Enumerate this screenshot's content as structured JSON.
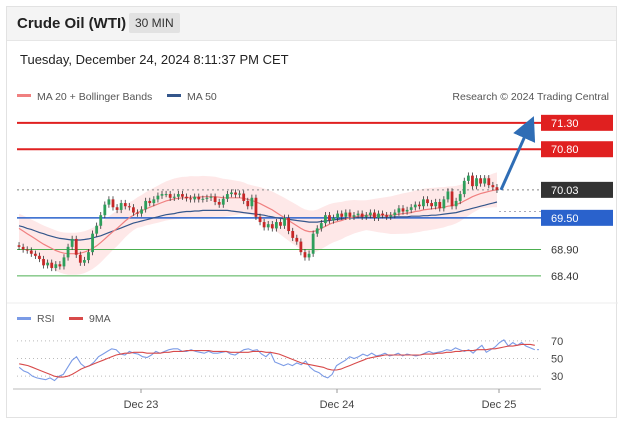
{
  "header": {
    "title": "Crude Oil (WTI)",
    "timeframe": "30 MIN"
  },
  "datetime": "Tuesday, December 24, 2024 8:11:37 PM CET",
  "legend": {
    "ma20_bb": "MA 20 + Bollinger Bands",
    "ma50": "MA 50",
    "copyright": "Research © 2024 Trading Central"
  },
  "rsi_legend": {
    "rsi": "RSI",
    "ma9": "9MA"
  },
  "colors": {
    "resistance": "#e02020",
    "support": "#4caf50",
    "pivot": "#2a62cc",
    "current": "#333333",
    "ma20": "#f08080",
    "ma50": "#34568b",
    "band": "#fde0e0",
    "up": "#2e9e5b",
    "down": "#c62828",
    "rsi": "#7b9be6",
    "ma9": "#d84a4a",
    "arrow": "#2f6db5"
  },
  "chart_data": [
    {
      "type": "candlestick",
      "title": "Crude Oil (WTI)",
      "x_ticks": [
        "Dec 23",
        "Dec 24",
        "Dec 25"
      ],
      "ylim": [
        68.0,
        71.6
      ],
      "levels": [
        {
          "label": "71.30",
          "value": 71.3,
          "kind": "resistance"
        },
        {
          "label": "70.80",
          "value": 70.8,
          "kind": "resistance"
        },
        {
          "label": "70.03",
          "value": 70.03,
          "kind": "current"
        },
        {
          "label": "69.50",
          "value": 69.5,
          "kind": "pivot"
        },
        {
          "label": "68.90",
          "value": 68.9,
          "kind": "support"
        },
        {
          "label": "68.40",
          "value": 68.4,
          "kind": "support"
        }
      ],
      "close": [
        68.95,
        68.9,
        68.88,
        68.82,
        68.78,
        68.72,
        68.6,
        68.65,
        68.55,
        68.62,
        68.58,
        68.75,
        68.95,
        69.1,
        68.8,
        68.65,
        68.7,
        68.85,
        69.2,
        69.35,
        69.55,
        69.75,
        69.85,
        69.7,
        69.65,
        69.78,
        69.72,
        69.7,
        69.6,
        69.58,
        69.66,
        69.82,
        69.78,
        69.85,
        69.92,
        69.95,
        69.95,
        69.88,
        69.9,
        69.95,
        69.9,
        69.87,
        69.85,
        69.9,
        69.85,
        69.86,
        69.88,
        69.9,
        69.8,
        69.75,
        69.86,
        69.95,
        69.98,
        69.94,
        69.96,
        69.82,
        69.72,
        69.88,
        69.52,
        69.42,
        69.32,
        69.38,
        69.3,
        69.42,
        69.35,
        69.5,
        69.25,
        69.12,
        69.05,
        68.85,
        68.75,
        68.82,
        69.2,
        69.3,
        69.4,
        69.55,
        69.45,
        69.5,
        69.58,
        69.52,
        69.6,
        69.52,
        69.55,
        69.58,
        69.52,
        69.55,
        69.6,
        69.5,
        69.58,
        69.55,
        69.52,
        69.55,
        69.6,
        69.68,
        69.62,
        69.65,
        69.7,
        69.75,
        69.72,
        69.85,
        69.78,
        69.72,
        69.8,
        69.68,
        69.85,
        70.0,
        69.72,
        69.82,
        69.95,
        70.2,
        70.3,
        70.1,
        70.25,
        70.15,
        70.25,
        70.12,
        70.08,
        70.03
      ],
      "open": [
        68.98,
        68.95,
        68.9,
        68.88,
        68.82,
        68.78,
        68.72,
        68.6,
        68.65,
        68.55,
        68.62,
        68.58,
        68.75,
        68.95,
        69.1,
        68.8,
        68.65,
        68.7,
        68.85,
        69.2,
        69.35,
        69.55,
        69.75,
        69.85,
        69.7,
        69.65,
        69.78,
        69.72,
        69.7,
        69.6,
        69.58,
        69.66,
        69.82,
        69.78,
        69.85,
        69.92,
        69.95,
        69.95,
        69.88,
        69.9,
        69.95,
        69.9,
        69.87,
        69.85,
        69.9,
        69.85,
        69.86,
        69.88,
        69.9,
        69.8,
        69.75,
        69.86,
        69.95,
        69.98,
        69.94,
        69.96,
        69.82,
        69.72,
        69.88,
        69.52,
        69.42,
        69.32,
        69.38,
        69.3,
        69.42,
        69.35,
        69.5,
        69.25,
        69.12,
        69.05,
        68.85,
        68.75,
        68.82,
        69.2,
        69.3,
        69.4,
        69.55,
        69.45,
        69.5,
        69.58,
        69.52,
        69.6,
        69.52,
        69.55,
        69.58,
        69.52,
        69.55,
        69.6,
        69.5,
        69.58,
        69.55,
        69.52,
        69.55,
        69.6,
        69.68,
        69.62,
        69.65,
        69.7,
        69.75,
        69.72,
        69.85,
        69.78,
        69.72,
        69.8,
        69.68,
        69.85,
        70.0,
        69.72,
        69.82,
        69.95,
        70.2,
        70.3,
        70.1,
        70.25,
        70.15,
        70.25,
        70.12,
        70.08
      ],
      "ma20": [
        69.3,
        69.25,
        69.2,
        69.15,
        69.1,
        69.05,
        69.0,
        68.96,
        68.92,
        68.88,
        68.85,
        68.83,
        68.82,
        68.82,
        68.82,
        68.83,
        68.85,
        68.88,
        68.92,
        68.97,
        69.03,
        69.1,
        69.17,
        69.24,
        69.3,
        69.37,
        69.44,
        69.5,
        69.55,
        69.6,
        69.63,
        69.67,
        69.7,
        69.73,
        69.76,
        69.79,
        69.82,
        69.84,
        69.86,
        69.87,
        69.88,
        69.88,
        69.89,
        69.89,
        69.89,
        69.9,
        69.9,
        69.9,
        69.9,
        69.89,
        69.88,
        69.88,
        69.88,
        69.88,
        69.88,
        69.87,
        69.85,
        69.83,
        69.8,
        69.77,
        69.73,
        69.69,
        69.65,
        69.6,
        69.55,
        69.5,
        69.45,
        69.4,
        69.35,
        69.3,
        69.26,
        69.24,
        69.24,
        69.26,
        69.3,
        69.34,
        69.38,
        69.41,
        69.43,
        69.45,
        69.48,
        69.5,
        69.52,
        69.53,
        69.54,
        69.55,
        69.55,
        69.55,
        69.55,
        69.55,
        69.55,
        69.55,
        69.56,
        69.57,
        69.58,
        69.59,
        69.6,
        69.62,
        69.63,
        69.65,
        69.66,
        69.67,
        69.68,
        69.69,
        69.7,
        69.72,
        69.73,
        69.75,
        69.78,
        69.82,
        69.86,
        69.9,
        69.93,
        69.96,
        69.98,
        70.0,
        70.02,
        70.03
      ],
      "ma50": [
        69.35,
        69.33,
        69.3,
        69.28,
        69.25,
        69.22,
        69.2,
        69.17,
        69.15,
        69.13,
        69.11,
        69.1,
        69.09,
        69.08,
        69.08,
        69.08,
        69.09,
        69.1,
        69.12,
        69.14,
        69.16,
        69.19,
        69.22,
        69.25,
        69.28,
        69.31,
        69.34,
        69.37,
        69.4,
        69.42,
        69.44,
        69.46,
        69.48,
        69.5,
        69.52,
        69.54,
        69.56,
        69.57,
        69.58,
        69.6,
        69.61,
        69.62,
        69.62,
        69.63,
        69.63,
        69.64,
        69.64,
        69.64,
        69.64,
        69.64,
        69.64,
        69.64,
        69.63,
        69.62,
        69.61,
        69.6,
        69.59,
        69.58,
        69.57,
        69.56,
        69.55,
        69.53,
        69.52,
        69.5,
        69.49,
        69.48,
        69.47,
        69.46,
        69.45,
        69.44,
        69.43,
        69.42,
        69.42,
        69.42,
        69.43,
        69.44,
        69.45,
        69.46,
        69.47,
        69.48,
        69.49,
        69.5,
        69.5,
        69.51,
        69.51,
        69.51,
        69.51,
        69.51,
        69.51,
        69.51,
        69.51,
        69.51,
        69.52,
        69.52,
        69.52,
        69.52,
        69.53,
        69.53,
        69.53,
        69.54,
        69.54,
        69.55,
        69.55,
        69.56,
        69.57,
        69.58,
        69.59,
        69.6,
        69.62,
        69.64,
        69.66,
        69.68,
        69.7,
        69.72,
        69.74,
        69.76,
        69.78,
        69.8
      ]
    },
    {
      "type": "line",
      "title": "RSI",
      "y_ticks": [
        "70",
        "50",
        "30"
      ],
      "ylim": [
        20,
        80
      ],
      "series": [
        {
          "name": "RSI",
          "values": [
            40,
            36,
            34,
            30,
            28,
            27,
            26,
            28,
            25,
            30,
            32,
            40,
            48,
            52,
            44,
            40,
            42,
            46,
            52,
            55,
            58,
            61,
            60,
            55,
            54,
            58,
            56,
            55,
            52,
            51,
            54,
            58,
            56,
            58,
            60,
            61,
            61,
            58,
            58,
            60,
            58,
            57,
            56,
            58,
            56,
            56,
            57,
            58,
            55,
            54,
            57,
            60,
            61,
            59,
            60,
            55,
            52,
            57,
            46,
            44,
            42,
            44,
            42,
            45,
            43,
            47,
            40,
            36,
            34,
            30,
            28,
            32,
            42,
            45,
            48,
            52,
            50,
            52,
            55,
            53,
            56,
            53,
            54,
            56,
            53,
            54,
            56,
            53,
            55,
            54,
            53,
            54,
            56,
            58,
            56,
            57,
            58,
            60,
            59,
            62,
            60,
            58,
            60,
            56,
            61,
            65,
            57,
            60,
            63,
            68,
            71,
            64,
            68,
            65,
            68,
            64,
            62,
            60
          ]
        },
        {
          "name": "9MA",
          "values": [
            44,
            43,
            42,
            40,
            38,
            36,
            34,
            32,
            30,
            29,
            29,
            30,
            32,
            35,
            38,
            40,
            42,
            44,
            46,
            48,
            50,
            52,
            54,
            55,
            56,
            56,
            57,
            57,
            57,
            56,
            56,
            56,
            56,
            57,
            57,
            58,
            58,
            58,
            59,
            59,
            59,
            59,
            59,
            59,
            58,
            58,
            58,
            58,
            57,
            57,
            57,
            57,
            57,
            58,
            58,
            58,
            57,
            57,
            56,
            55,
            53,
            51,
            49,
            47,
            45,
            44,
            43,
            42,
            41,
            40,
            38,
            37,
            37,
            38,
            40,
            42,
            44,
            46,
            48,
            50,
            51,
            52,
            53,
            54,
            54,
            54,
            54,
            54,
            54,
            54,
            54,
            54,
            55,
            55,
            55,
            56,
            56,
            57,
            57,
            58,
            58,
            59,
            59,
            59,
            60,
            60,
            60,
            61,
            61,
            62,
            63,
            64,
            64,
            65,
            66,
            66,
            66,
            65
          ]
        }
      ]
    }
  ]
}
